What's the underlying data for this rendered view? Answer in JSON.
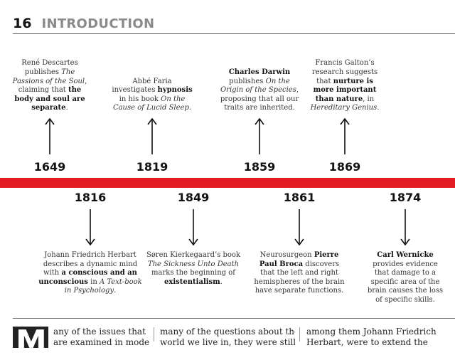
{
  "header": {
    "page_number": "16",
    "section": "INTRODUCTION"
  },
  "timeline_top": [
    {
      "year": "1649",
      "lines": [
        [
          {
            "t": "René Descartes"
          }
        ],
        [
          {
            "t": "publishes "
          },
          {
            "t": "The",
            "i": 1
          }
        ],
        [
          {
            "t": "Passions of the Soul",
            "i": 1
          },
          {
            "t": ","
          }
        ],
        [
          {
            "t": "claiming that "
          },
          {
            "t": "the",
            "b": 1
          }
        ],
        [
          {
            "t": "body and soul are",
            "b": 1
          }
        ],
        [
          {
            "t": "separate",
            "b": 1
          },
          {
            "t": "."
          }
        ]
      ]
    },
    {
      "year": "1819",
      "lines": [
        [
          {
            "t": "Abbé Faria"
          }
        ],
        [
          {
            "t": "investigates "
          },
          {
            "t": "hypnosis",
            "b": 1
          }
        ],
        [
          {
            "t": "in his book "
          },
          {
            "t": "On the",
            "i": 1
          }
        ],
        [
          {
            "t": "Cause of Lucid Sleep",
            "i": 1
          },
          {
            "t": "."
          }
        ]
      ]
    },
    {
      "year": "1859",
      "lines": [
        [
          {
            "t": "Charles Darwin",
            "b": 1
          }
        ],
        [
          {
            "t": "publishes "
          },
          {
            "t": "On the",
            "i": 1
          }
        ],
        [
          {
            "t": "Origin of the Species",
            "i": 1
          },
          {
            "t": ","
          }
        ],
        [
          {
            "t": "proposing that all our"
          }
        ],
        [
          {
            "t": "traits are inherited."
          }
        ]
      ]
    },
    {
      "year": "1869",
      "lines": [
        [
          {
            "t": "Francis Galton’s"
          }
        ],
        [
          {
            "t": "research suggests"
          }
        ],
        [
          {
            "t": "that "
          },
          {
            "t": "nurture is",
            "b": 1
          }
        ],
        [
          {
            "t": "more important",
            "b": 1
          }
        ],
        [
          {
            "t": "than nature",
            "b": 1
          },
          {
            "t": ", in"
          }
        ],
        [
          {
            "t": "Hereditary Genius",
            "i": 1
          },
          {
            "t": "."
          }
        ]
      ]
    }
  ],
  "timeline_bottom": [
    {
      "year": "1816",
      "lines": [
        [
          {
            "t": "Johann Friedrich Herbart"
          }
        ],
        [
          {
            "t": "describes a dynamic mind"
          }
        ],
        [
          {
            "t": "with "
          },
          {
            "t": "a conscious and an",
            "b": 1
          }
        ],
        [
          {
            "t": "unconscious",
            "b": 1
          },
          {
            "t": " in "
          },
          {
            "t": "A Text-book",
            "i": 1
          }
        ],
        [
          {
            "t": "in Psychology",
            "i": 1
          },
          {
            "t": "."
          }
        ]
      ]
    },
    {
      "year": "1849",
      "lines": [
        [
          {
            "t": "Søren Kierkegaard’s book"
          }
        ],
        [
          {
            "t": "The Sickness Unto Death",
            "i": 1
          }
        ],
        [
          {
            "t": "marks the beginning of"
          }
        ],
        [
          {
            "t": "existentialism",
            "b": 1
          },
          {
            "t": "."
          }
        ]
      ]
    },
    {
      "year": "1861",
      "lines": [
        [
          {
            "t": "Neurosurgeon "
          },
          {
            "t": "Pierre",
            "b": 1
          }
        ],
        [
          {
            "t": "Paul Broca",
            "b": 1
          },
          {
            "t": " discovers"
          }
        ],
        [
          {
            "t": "that the left and right"
          }
        ],
        [
          {
            "t": "hemispheres of the brain"
          }
        ],
        [
          {
            "t": "have separate functions."
          }
        ]
      ]
    },
    {
      "year": "1874",
      "lines": [
        [
          {
            "t": "Carl Wernicke",
            "b": 1
          }
        ],
        [
          {
            "t": "provides evidence"
          }
        ],
        [
          {
            "t": "that damage to a"
          }
        ],
        [
          {
            "t": "specific area of the"
          }
        ],
        [
          {
            "t": "brain causes the loss"
          }
        ],
        [
          {
            "t": "of specific skills."
          }
        ]
      ]
    }
  ],
  "body_columns": [
    {
      "dropcap": "M",
      "lines": [
        "any of the issues that",
        "are examined in modern"
      ]
    },
    {
      "lines": [
        "many of the questions about the",
        "world we live in, they were still"
      ]
    },
    {
      "lines": [
        "among them Johann Friedrich",
        "Herbart, were to extend the"
      ]
    }
  ],
  "colors": {
    "band": "#e51b24",
    "section": "#8a8a8a"
  }
}
